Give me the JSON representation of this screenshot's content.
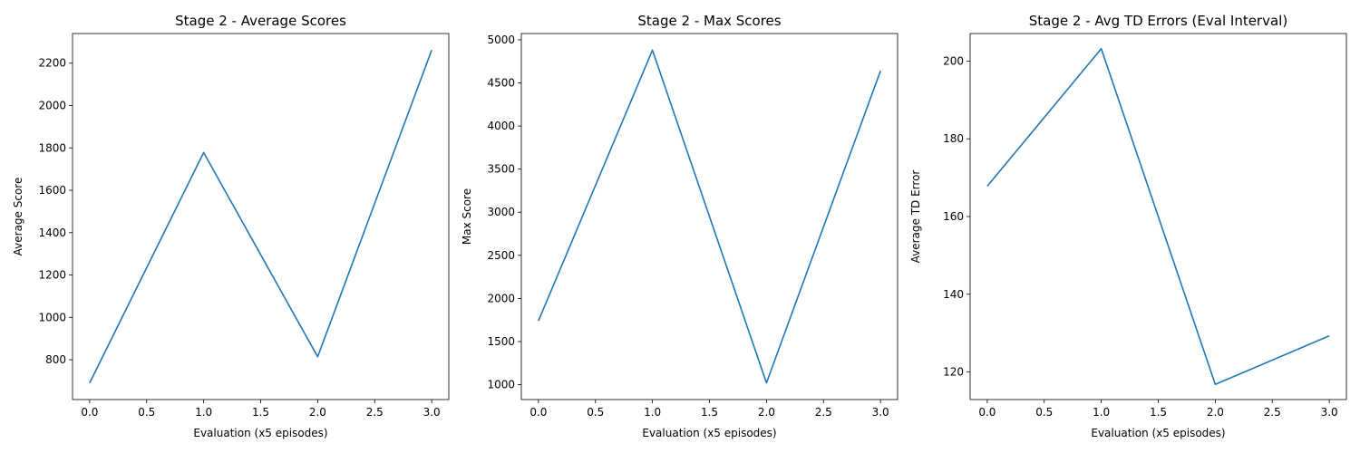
{
  "chart_data": [
    {
      "type": "line",
      "title": "Stage 2 - Average Scores",
      "xlabel": "Evaluation (x5 episodes)",
      "ylabel": "Average Score",
      "x": [
        0,
        1,
        2,
        3
      ],
      "series": [
        {
          "values": [
            690,
            1778,
            814,
            2262
          ]
        }
      ],
      "xlim": [
        -0.15,
        3.15
      ],
      "ylim": [
        612,
        2340
      ],
      "xticks": [
        0.0,
        0.5,
        1.0,
        1.5,
        2.0,
        2.5,
        3.0
      ],
      "xtick_labels": [
        "0.0",
        "0.5",
        "1.0",
        "1.5",
        "2.0",
        "2.5",
        "3.0"
      ],
      "yticks": [
        800,
        1000,
        1200,
        1400,
        1600,
        1800,
        2000,
        2200
      ],
      "ytick_labels": [
        "800",
        "1000",
        "1200",
        "1400",
        "1600",
        "1800",
        "2000",
        "2200"
      ],
      "grid": false,
      "line_color": "#1f77b4"
    },
    {
      "type": "line",
      "title": "Stage 2 - Max Scores",
      "xlabel": "Evaluation (x5 episodes)",
      "ylabel": "Max Score",
      "x": [
        0,
        1,
        2,
        3
      ],
      "series": [
        {
          "values": [
            1740,
            4880,
            1020,
            4640
          ]
        }
      ],
      "xlim": [
        -0.15,
        3.15
      ],
      "ylim": [
        827,
        5073
      ],
      "xticks": [
        0.0,
        0.5,
        1.0,
        1.5,
        2.0,
        2.5,
        3.0
      ],
      "xtick_labels": [
        "0.0",
        "0.5",
        "1.0",
        "1.5",
        "2.0",
        "2.5",
        "3.0"
      ],
      "yticks": [
        1000,
        1500,
        2000,
        2500,
        3000,
        3500,
        4000,
        4500,
        5000
      ],
      "ytick_labels": [
        "1000",
        "1500",
        "2000",
        "2500",
        "3000",
        "3500",
        "4000",
        "4500",
        "5000"
      ],
      "grid": false,
      "line_color": "#1f77b4"
    },
    {
      "type": "line",
      "title": "Stage 2 - Avg TD Errors (Eval Interval)",
      "xlabel": "Evaluation (x5 episodes)",
      "ylabel": "Average TD Error",
      "x": [
        0,
        1,
        2,
        3
      ],
      "series": [
        {
          "values": [
            167.8,
            203.2,
            116.8,
            129.3
          ]
        }
      ],
      "xlim": [
        -0.15,
        3.15
      ],
      "ylim": [
        112.9,
        207.1
      ],
      "xticks": [
        0.0,
        0.5,
        1.0,
        1.5,
        2.0,
        2.5,
        3.0
      ],
      "xtick_labels": [
        "0.0",
        "0.5",
        "1.0",
        "1.5",
        "2.0",
        "2.5",
        "3.0"
      ],
      "yticks": [
        120,
        140,
        160,
        180,
        200
      ],
      "ytick_labels": [
        "120",
        "140",
        "160",
        "180",
        "200"
      ],
      "grid": false,
      "line_color": "#1f77b4"
    }
  ]
}
